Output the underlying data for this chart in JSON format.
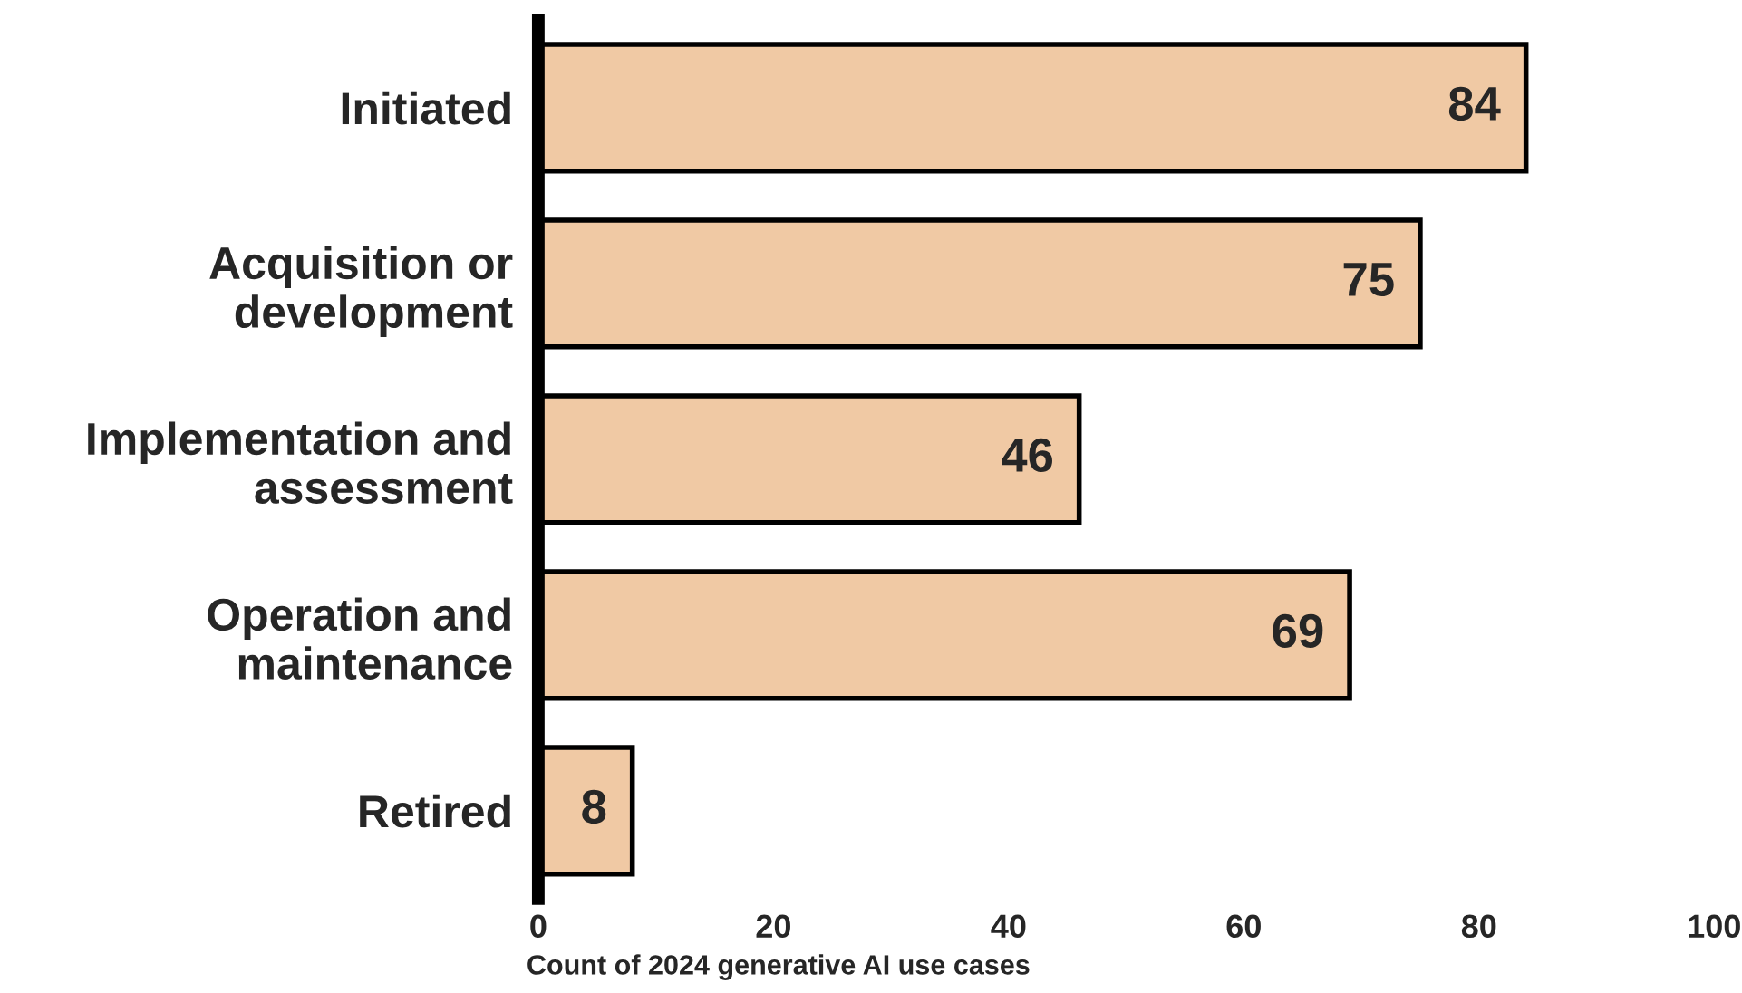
{
  "chart_data": {
    "type": "bar",
    "orientation": "horizontal",
    "categories": [
      "Initiated",
      "Acquisition or\ndevelopment",
      "Implementation and\nassessment",
      "Operation and\nmaintenance",
      "Retired"
    ],
    "values": [
      84,
      75,
      46,
      69,
      8
    ],
    "color": "#f0c9a4",
    "xlabel": "Count of 2024 generative AI use cases",
    "xlim": [
      0,
      100
    ],
    "xticks": [
      0,
      20,
      40,
      60,
      80,
      100
    ],
    "data_labels": true,
    "grid": false,
    "legend": false
  }
}
